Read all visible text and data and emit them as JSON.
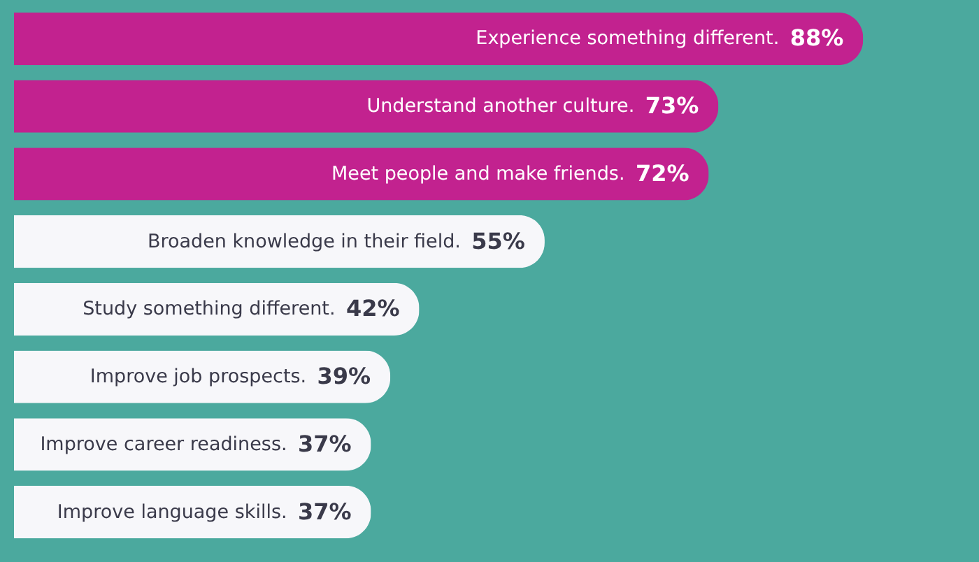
{
  "chart_data": {
    "type": "bar",
    "orientation": "horizontal",
    "categories": [
      "Experience something different.",
      "Understand another culture.",
      "Meet people and make friends.",
      "Broaden knowledge in their field.",
      "Study something different.",
      "Improve job prospects.",
      "Improve career readiness.",
      "Improve language skills."
    ],
    "values": [
      88,
      73,
      72,
      55,
      42,
      39,
      37,
      37
    ],
    "value_labels": [
      "88%",
      "73%",
      "72%",
      "55%",
      "42%",
      "39%",
      "37%",
      "37%"
    ],
    "colors": [
      "#c2228f",
      "#c2228f",
      "#c2228f",
      "#f7f7fa",
      "#f7f7fa",
      "#f7f7fa",
      "#f7f7fa",
      "#f7f7fa"
    ]
  }
}
